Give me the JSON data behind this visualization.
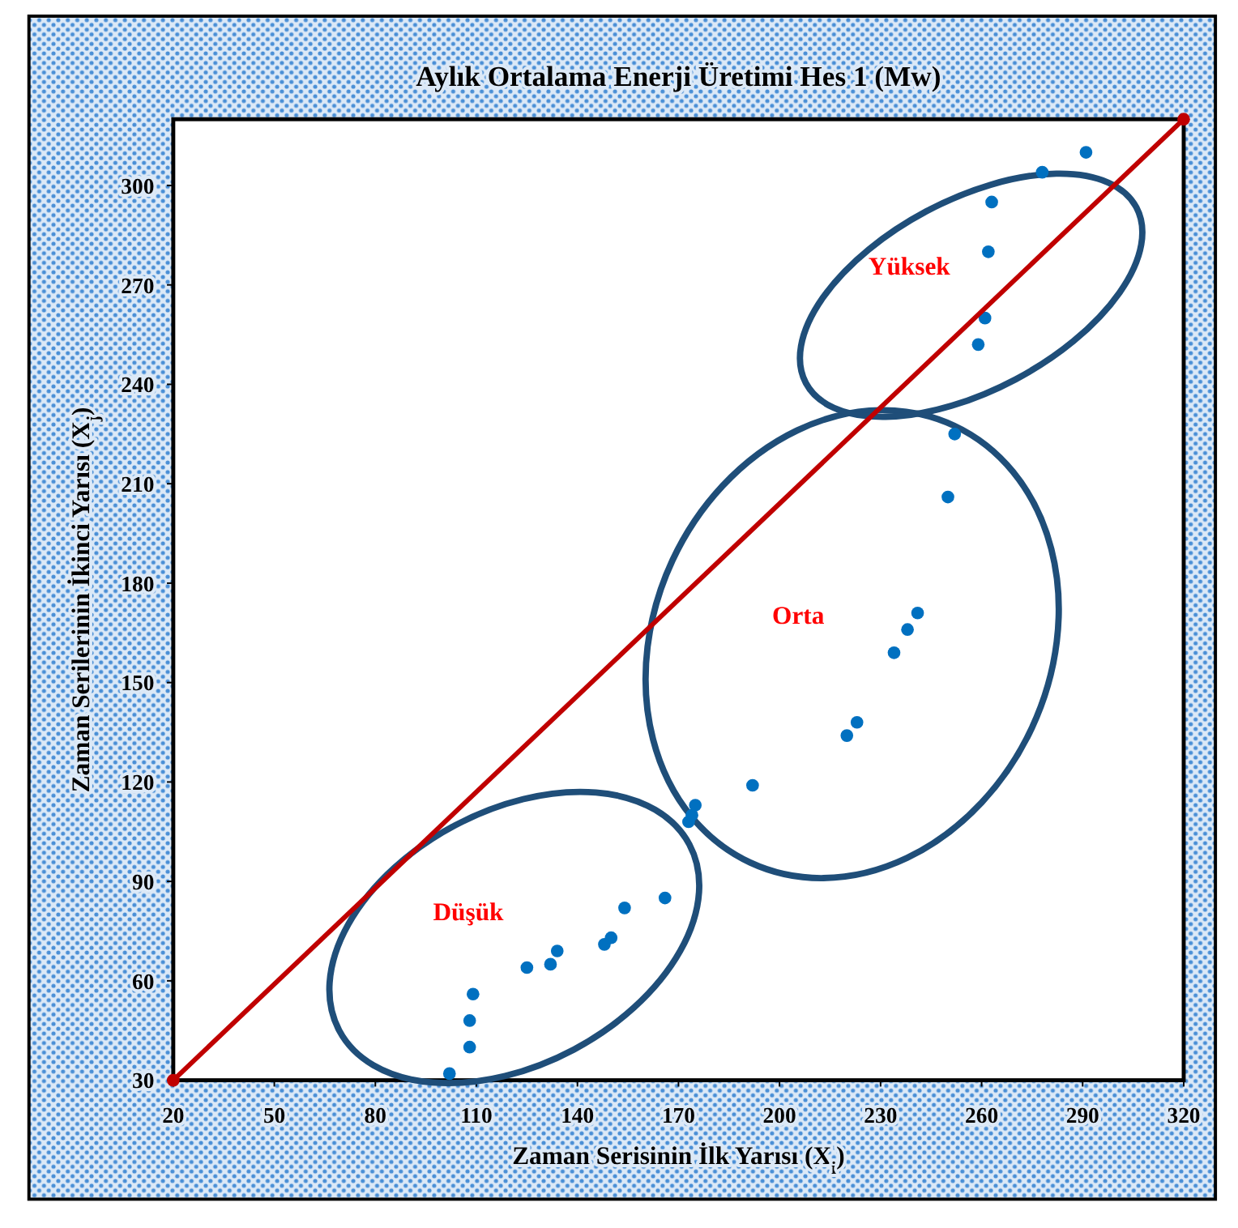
{
  "chart_data": {
    "type": "scatter",
    "title": "Aylık Ortalama Enerji Üretimi Hes 1 (Mw)",
    "xlabel": "Zaman Serisinin İlk Yarısı (X$_{i}$)",
    "ylabel": "Zaman Serilerinin İkinci Yarısı (X$_{j}$)",
    "xlim": [
      20,
      320
    ],
    "ylim": [
      30,
      320
    ],
    "xticks": [
      20,
      50,
      80,
      110,
      140,
      170,
      200,
      230,
      260,
      290,
      320
    ],
    "yticks": [
      30,
      60,
      90,
      120,
      150,
      180,
      210,
      240,
      270,
      300
    ],
    "grid": false,
    "marker": "circle",
    "series": [
      {
        "color": "#0070c0",
        "x": [
          102,
          108,
          108,
          109,
          125,
          132,
          134,
          148,
          150,
          154,
          166,
          173,
          174,
          175,
          192,
          220,
          223,
          234,
          238,
          241,
          250,
          252,
          259,
          261,
          262,
          263,
          278,
          291
        ],
        "values": [
          32,
          40,
          48,
          56,
          64,
          65,
          69,
          71,
          73,
          82,
          85,
          108,
          110,
          113,
          119,
          134,
          138,
          159,
          166,
          171,
          206,
          225,
          252,
          260,
          280,
          295,
          304,
          310
        ]
      },
      {
        "type": "line",
        "color": "#c00000",
        "x": [
          20,
          320
        ],
        "values": [
          30,
          320
        ],
        "marker": "circle",
        "line_style": "solid"
      }
    ],
    "annotations": [
      "Düşük",
      "Orta",
      "Yüksek"
    ]
  }
}
